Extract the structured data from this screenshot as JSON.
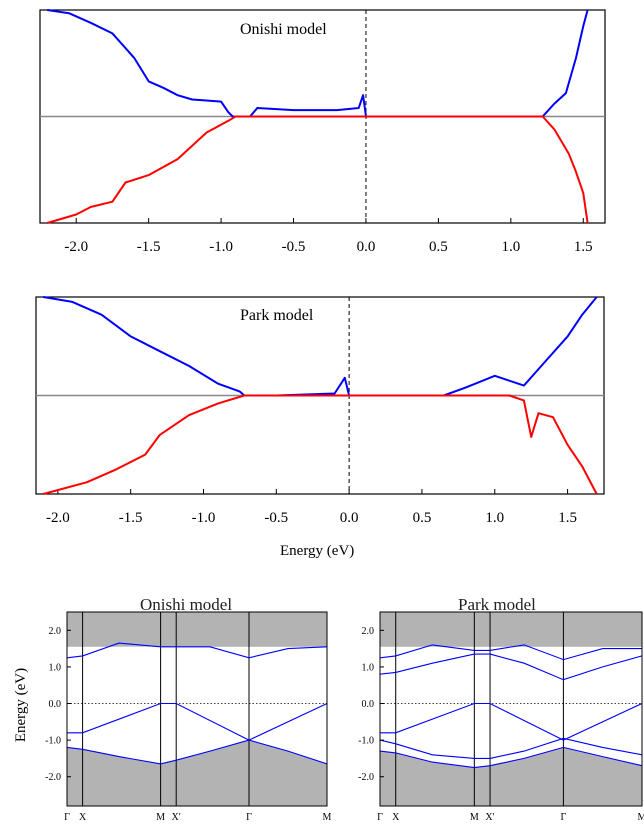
{
  "chart_data": [
    {
      "type": "line",
      "title": "Onishi model",
      "xlim": [
        -2.25,
        1.65
      ],
      "xticks": [
        "-2.0",
        "-1.5",
        "-1.0",
        "-0.5",
        "0.0",
        "0.5",
        "1.0",
        "1.5"
      ],
      "series": [
        {
          "color": "#0000ff",
          "x": [
            -2.2,
            -2.05,
            -1.9,
            -1.75,
            -1.6,
            -1.5,
            -1.4,
            -1.3,
            -1.2,
            -1.1,
            -1.0,
            -0.95,
            -0.92,
            -0.8,
            -0.75,
            -0.5,
            -0.2,
            -0.05,
            -0.02,
            0.0
          ],
          "y": [
            1.0,
            0.97,
            0.88,
            0.78,
            0.55,
            0.33,
            0.27,
            0.2,
            0.16,
            0.15,
            0.14,
            0.04,
            0.0,
            0.0,
            0.08,
            0.06,
            0.06,
            0.08,
            0.2,
            0.0
          ]
        },
        {
          "color": "#0000ff",
          "x": [
            1.22,
            1.3,
            1.38,
            1.45,
            1.5,
            1.53
          ],
          "y": [
            0.0,
            0.12,
            0.22,
            0.55,
            0.85,
            1.0
          ]
        },
        {
          "color": "#ff0000",
          "x": [
            -2.2,
            -2.0,
            -1.9,
            -1.75,
            -1.66,
            -1.5,
            -1.3,
            -1.1,
            -0.95,
            -0.9,
            0.0,
            1.22,
            1.3,
            1.4,
            1.45,
            1.5,
            1.53
          ],
          "y": [
            -1.0,
            -0.92,
            -0.85,
            -0.8,
            -0.62,
            -0.55,
            -0.4,
            -0.15,
            -0.04,
            0.0,
            0.0,
            0.0,
            -0.12,
            -0.35,
            -0.52,
            -0.72,
            -1.0
          ]
        }
      ]
    },
    {
      "type": "line",
      "title": "Park model",
      "xlabel": "Energy (eV)",
      "xlim": [
        -2.15,
        1.75
      ],
      "xticks": [
        "-2.0",
        "-1.5",
        "-1.0",
        "-0.5",
        "0.0",
        "0.5",
        "1.0",
        "1.5"
      ],
      "series": [
        {
          "color": "#0000ff",
          "x": [
            -2.1,
            -1.9,
            -1.7,
            -1.5,
            -1.3,
            -1.1,
            -0.9,
            -0.75,
            -0.72,
            -0.5,
            -0.1,
            -0.03,
            0.0
          ],
          "y": [
            1.0,
            0.95,
            0.82,
            0.6,
            0.45,
            0.3,
            0.12,
            0.04,
            0.0,
            0.0,
            0.02,
            0.18,
            0.0
          ]
        },
        {
          "color": "#0000ff",
          "x": [
            0.65,
            0.8,
            1.0,
            1.2,
            1.35,
            1.5,
            1.6,
            1.7
          ],
          "y": [
            0.0,
            0.08,
            0.2,
            0.1,
            0.35,
            0.6,
            0.82,
            1.0
          ]
        },
        {
          "color": "#ff0000",
          "x": [
            -2.1,
            -1.8,
            -1.6,
            -1.4,
            -1.3,
            -1.1,
            -0.9,
            -0.72,
            0.0,
            1.1,
            1.2,
            1.25,
            1.3,
            1.4,
            1.5,
            1.6,
            1.7
          ],
          "y": [
            -1.0,
            -0.88,
            -0.75,
            -0.6,
            -0.4,
            -0.2,
            -0.08,
            0.0,
            0.0,
            0.0,
            -0.05,
            -0.42,
            -0.18,
            -0.22,
            -0.5,
            -0.72,
            -1.0
          ]
        }
      ]
    },
    {
      "type": "line",
      "title": "Onishi model",
      "ylabel": "Energy (eV)",
      "ylim": [
        -2.8,
        2.5
      ],
      "yticks": [
        2.0,
        1.0,
        0.0,
        -1.0,
        -2.0
      ],
      "kpoints": [
        "Γ",
        "X",
        "M",
        "X′",
        "Γ",
        "M"
      ],
      "kpos": [
        0.0,
        0.06,
        0.36,
        0.42,
        0.7,
        1.0
      ],
      "series": [
        {
          "color": "#0000ff",
          "x": [
            0.0,
            0.06,
            0.2,
            0.36,
            0.42,
            0.55,
            0.7,
            0.85,
            1.0
          ],
          "y": [
            1.25,
            1.3,
            1.65,
            1.55,
            1.55,
            1.55,
            1.25,
            1.5,
            1.55
          ]
        },
        {
          "color": "#0000ff",
          "x": [
            0.0,
            0.06,
            0.36,
            0.42,
            0.7,
            1.0
          ],
          "y": [
            -0.8,
            -0.8,
            0.0,
            0.0,
            -1.0,
            0.0
          ]
        },
        {
          "color": "#0000ff",
          "x": [
            0.0,
            0.06,
            0.2,
            0.36,
            0.42,
            0.55,
            0.7,
            0.85,
            1.0
          ],
          "y": [
            -1.2,
            -1.25,
            -1.45,
            -1.65,
            -1.55,
            -1.3,
            -1.0,
            -1.3,
            -1.65
          ]
        }
      ]
    },
    {
      "type": "line",
      "title": "Park model",
      "ylim": [
        -2.8,
        2.5
      ],
      "yticks": [
        2.0,
        1.0,
        0.0,
        -1.0,
        -2.0
      ],
      "kpoints": [
        "Γ",
        "X",
        "M",
        "X′",
        "Γ",
        "M"
      ],
      "kpos": [
        0.0,
        0.06,
        0.36,
        0.42,
        0.7,
        1.0
      ],
      "series": [
        {
          "color": "#0000ff",
          "x": [
            0.0,
            0.06,
            0.2,
            0.36,
            0.42,
            0.55,
            0.7,
            0.85,
            1.0
          ],
          "y": [
            1.25,
            1.3,
            1.6,
            1.45,
            1.45,
            1.6,
            1.2,
            1.5,
            1.5
          ]
        },
        {
          "color": "#0000ff",
          "x": [
            0.0,
            0.06,
            0.2,
            0.36,
            0.42,
            0.55,
            0.7,
            0.85,
            1.0
          ],
          "y": [
            0.8,
            0.85,
            1.1,
            1.35,
            1.35,
            1.1,
            0.65,
            1.0,
            1.3
          ]
        },
        {
          "color": "#0000ff",
          "x": [
            0.0,
            0.06,
            0.36,
            0.42,
            0.7,
            1.0
          ],
          "y": [
            -0.8,
            -0.8,
            0.0,
            0.0,
            -1.0,
            0.0
          ]
        },
        {
          "color": "#0000ff",
          "x": [
            0.0,
            0.06,
            0.2,
            0.36,
            0.42,
            0.55,
            0.7,
            0.85,
            1.0
          ],
          "y": [
            -1.0,
            -1.1,
            -1.4,
            -1.5,
            -1.5,
            -1.3,
            -0.95,
            -1.2,
            -1.4
          ]
        },
        {
          "color": "#0000ff",
          "x": [
            0.0,
            0.06,
            0.2,
            0.36,
            0.42,
            0.55,
            0.7,
            0.85,
            1.0
          ],
          "y": [
            -1.3,
            -1.35,
            -1.6,
            -1.75,
            -1.7,
            -1.5,
            -1.2,
            -1.45,
            -1.7
          ]
        }
      ]
    }
  ]
}
